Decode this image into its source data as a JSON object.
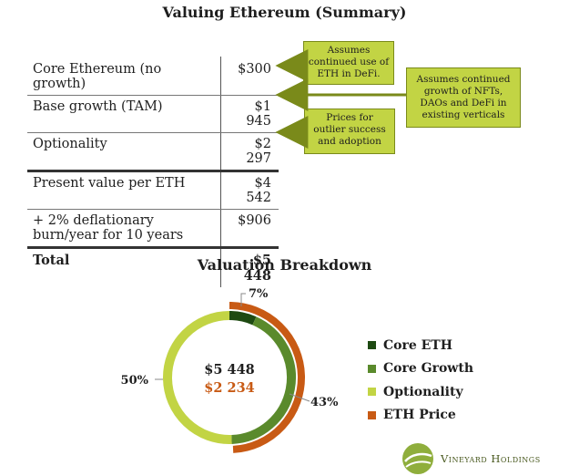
{
  "title": "Valuing Ethereum (Summary)",
  "table": {
    "rows": [
      {
        "label": "Core Ethereum (no growth)",
        "value": "$300"
      },
      {
        "label": "Base growth (TAM)",
        "value": "$1 945"
      },
      {
        "label": "Optionality",
        "value": "$2 297"
      },
      {
        "label": "Present value per ETH",
        "value": "$4 542"
      },
      {
        "label": "+ 2% deflationary burn/year for 10 years",
        "value": "$906"
      },
      {
        "label": "Total",
        "value": "$5 448"
      }
    ]
  },
  "notes": [
    "Assumes continued use of ETH in DeFi.",
    "Assumes continued growth of NFTs, DAOs and DeFi in existing verticals",
    "Prices for outlier success and adoption"
  ],
  "colors": {
    "core_eth": "#1e4a12",
    "core_growth": "#5a8a2c",
    "optionality": "#c2d444",
    "eth_price": "#c85a14",
    "note_fill": "#c2d444"
  },
  "chart_data": {
    "type": "pie",
    "title": "Valuation Breakdown",
    "inner_ring": {
      "labels": [
        "Core ETH",
        "Core Growth",
        "Optionality"
      ],
      "values": [
        300,
        1945,
        2297
      ],
      "percent_labels": [
        "7%",
        "43%",
        "50%"
      ]
    },
    "outer_ring": {
      "labels": [
        "ETH Price"
      ],
      "values": [
        2234
      ]
    },
    "center_total": "$5 448",
    "center_price": "$2 234",
    "legend": [
      "Core ETH",
      "Core Growth",
      "Optionality",
      "ETH Price"
    ],
    "legend_position": "right"
  },
  "brand": {
    "name": "Vineyard Holdings",
    "logo": "vineyard-leaf-logo"
  }
}
